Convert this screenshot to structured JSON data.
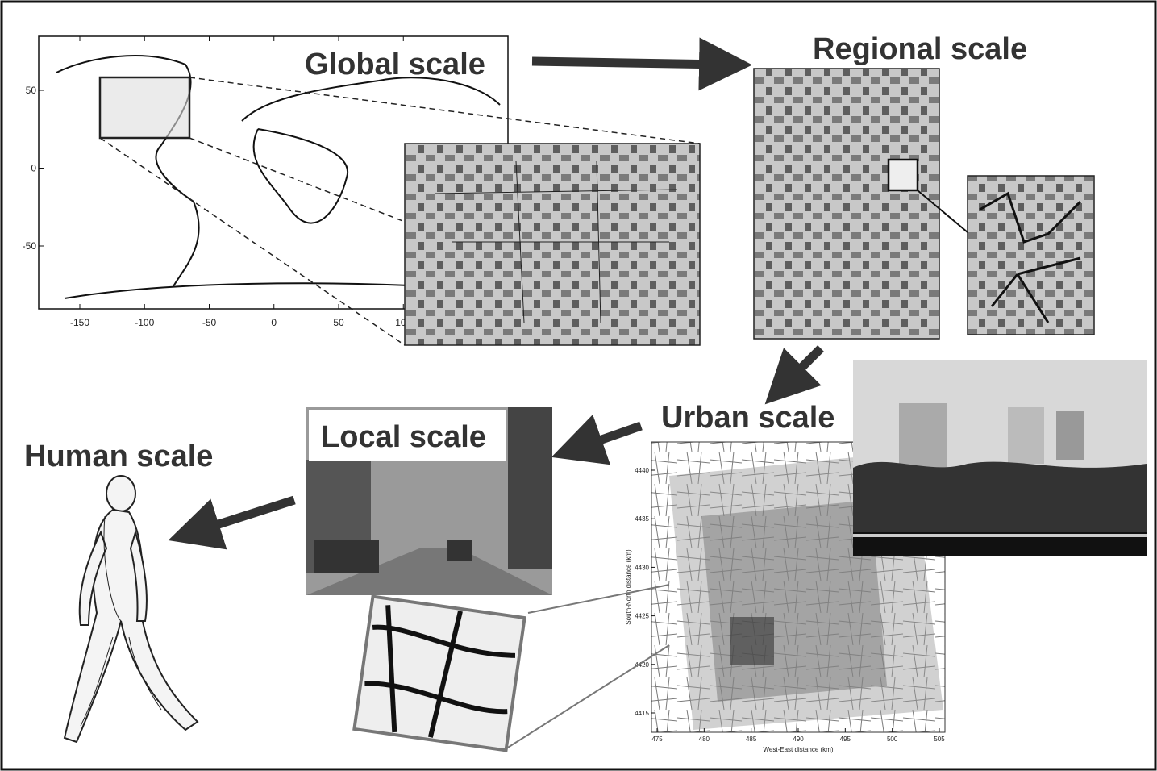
{
  "labels": {
    "global": "Global scale",
    "regional": "Regional scale",
    "urban": "Urban scale",
    "local": "Local scale",
    "human": "Human scale"
  },
  "global_map": {
    "xticks": [
      -150,
      -100,
      -50,
      0,
      50,
      100
    ],
    "yticks": [
      50,
      0,
      -50
    ]
  },
  "urban_map": {
    "x_label": "West-East distance (km)",
    "y_label": "South-North distance (km)",
    "xticks": [
      475,
      480,
      485,
      490,
      495,
      500,
      505
    ],
    "yticks": [
      4440,
      4435,
      4430,
      4425,
      4420,
      4415
    ]
  }
}
